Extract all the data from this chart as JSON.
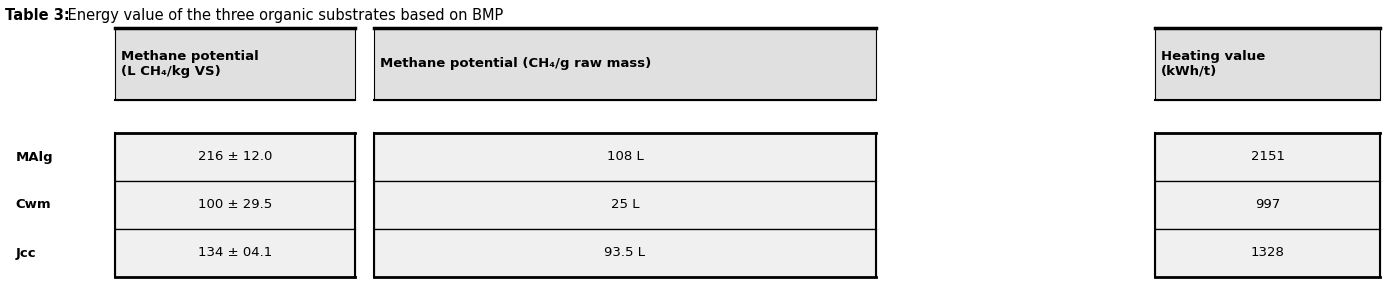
{
  "title_bold_part": "Table 3:",
  "title_normal_part": " Energy value of the three organic substrates based on BMP",
  "col_headers": [
    "Methane potential\n(L CH₄/kg VS)",
    "Methane potential (CH₄/g raw mass)",
    "Heating value\n(kWh/t)"
  ],
  "row_labels": [
    "MAlg",
    "Cwm",
    "Jcc"
  ],
  "data": [
    [
      "216 ± 12.0",
      "108 L",
      "2151"
    ],
    [
      "100 ± 29.5",
      "25 L",
      "997"
    ],
    [
      "134 ± 04.1",
      "93.5 L",
      "1328"
    ]
  ],
  "header_bg": "#e0e0e0",
  "cell_bg": "#f0f0f0",
  "border_color": "#000000",
  "text_color": "#000000",
  "title_fontsize": 10.5,
  "header_fontsize": 9.5,
  "cell_fontsize": 9.5,
  "row_label_fontsize": 9.5,
  "background_color": "#ffffff",
  "fig_width": 13.88,
  "fig_height": 2.84,
  "dpi": 100
}
